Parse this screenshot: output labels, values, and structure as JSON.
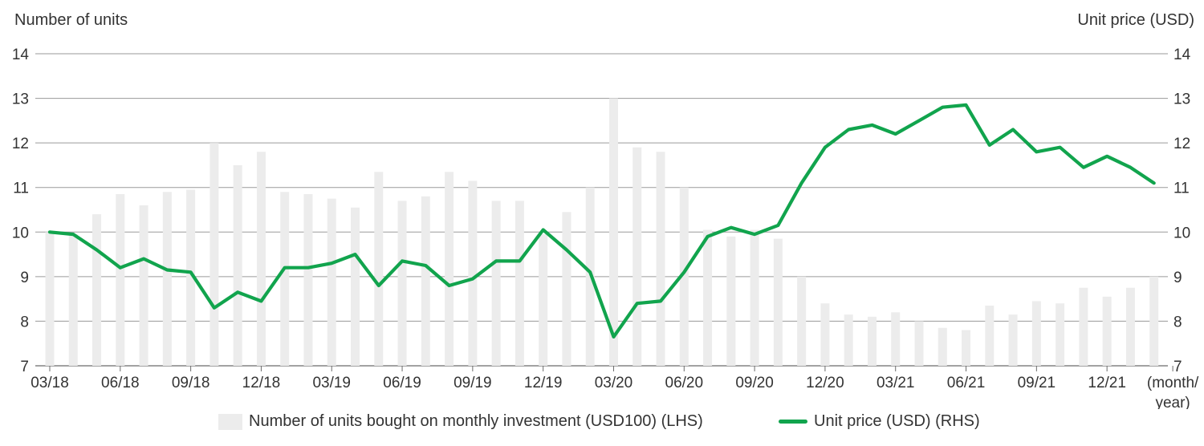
{
  "chart_data": {
    "type": "bar",
    "left_axis_title": "Number of units",
    "right_axis_title": "Unit price (USD)",
    "ylim": [
      7,
      14
    ],
    "yticks": [
      7,
      8,
      9,
      10,
      11,
      12,
      13,
      14
    ],
    "x_tick_labels": [
      "03/18",
      "06/18",
      "09/18",
      "12/18",
      "03/19",
      "06/19",
      "09/19",
      "12/19",
      "03/20",
      "06/20",
      "09/20",
      "12/20",
      "03/21",
      "06/21",
      "09/21",
      "12/21",
      "(month/\nyear)"
    ],
    "x_tick_positions": [
      0,
      3,
      6,
      9,
      12,
      15,
      18,
      21,
      24,
      27,
      30,
      33,
      36,
      39,
      42,
      45,
      47.8
    ],
    "categories": [
      "03/18",
      "04/18",
      "05/18",
      "06/18",
      "07/18",
      "08/18",
      "09/18",
      "10/18",
      "11/18",
      "12/18",
      "01/19",
      "02/19",
      "03/19",
      "04/19",
      "05/19",
      "06/19",
      "07/19",
      "08/19",
      "09/19",
      "10/19",
      "11/19",
      "12/19",
      "01/20",
      "02/20",
      "03/20",
      "04/20",
      "05/20",
      "06/20",
      "07/20",
      "08/20",
      "09/20",
      "10/20",
      "11/20",
      "12/20",
      "01/21",
      "02/21",
      "03/21",
      "04/21",
      "05/21",
      "06/21",
      "07/21",
      "08/21",
      "09/21",
      "10/21",
      "11/21",
      "12/21",
      "01/22",
      "02/22"
    ],
    "series": [
      {
        "name": "Number of units bought on monthly investment (USD100) (LHS)",
        "type": "bar",
        "axis": "left",
        "color": "#ececec",
        "values": [
          10.0,
          9.95,
          10.4,
          10.85,
          10.6,
          10.9,
          10.95,
          12.0,
          11.5,
          11.8,
          10.9,
          10.85,
          10.75,
          10.55,
          11.35,
          10.7,
          10.8,
          11.35,
          11.15,
          10.7,
          10.7,
          9.95,
          10.45,
          11.0,
          13.0,
          11.9,
          11.8,
          11.0,
          10.05,
          9.9,
          10.05,
          9.85,
          9.0,
          8.4,
          8.15,
          8.1,
          8.2,
          8.0,
          7.85,
          7.8,
          8.35,
          8.15,
          8.45,
          8.4,
          8.75,
          8.55,
          8.75,
          9.0
        ]
      },
      {
        "name": "Unit price (USD) (RHS)",
        "type": "line",
        "axis": "right",
        "color": "#11a44d",
        "values": [
          10.0,
          9.95,
          9.6,
          9.2,
          9.4,
          9.15,
          9.1,
          8.3,
          8.65,
          8.45,
          9.2,
          9.2,
          9.3,
          9.5,
          8.8,
          9.35,
          9.25,
          8.8,
          8.95,
          9.35,
          9.35,
          10.05,
          9.6,
          9.1,
          7.65,
          8.4,
          8.45,
          9.1,
          9.9,
          10.1,
          9.95,
          10.15,
          11.1,
          11.9,
          12.3,
          12.4,
          12.2,
          12.5,
          12.8,
          12.85,
          11.95,
          12.3,
          11.8,
          11.9,
          11.45,
          11.7,
          11.45,
          11.1
        ]
      }
    ],
    "grid": true,
    "legend": "bottom-center"
  }
}
